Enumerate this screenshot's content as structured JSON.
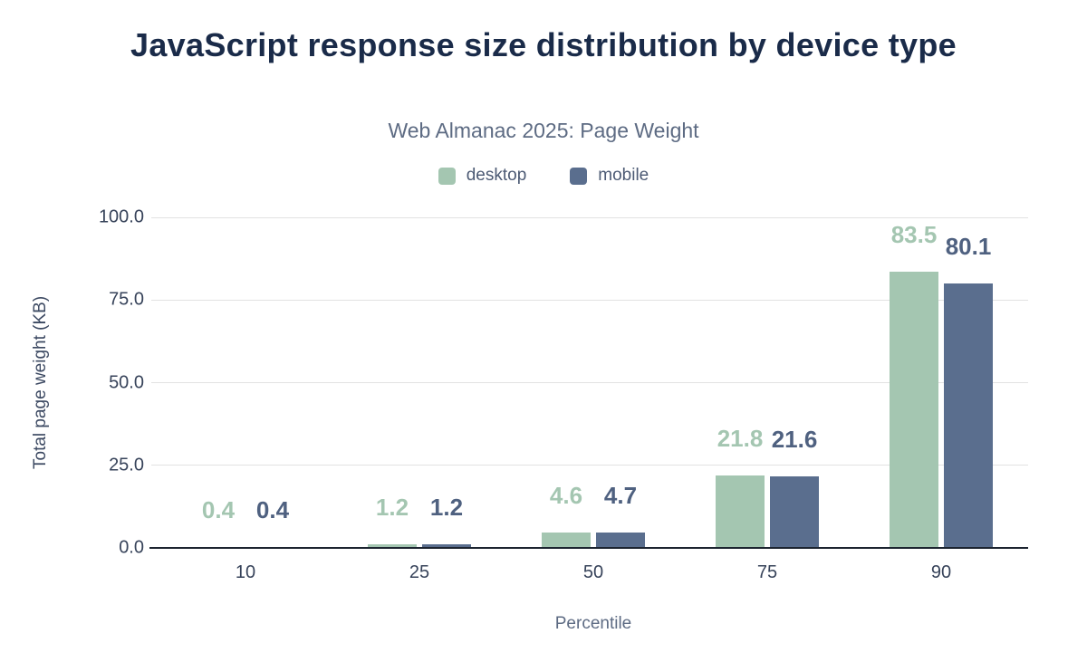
{
  "chart_data": {
    "type": "bar",
    "title": "JavaScript response size distribution by device type",
    "subtitle": "Web Almanac 2025: Page Weight",
    "xlabel": "Percentile",
    "ylabel": "Total page weight (KB)",
    "categories": [
      "10",
      "25",
      "50",
      "75",
      "90"
    ],
    "series": [
      {
        "name": "desktop",
        "color": "#a4c6b1",
        "label_color": "#a4c6b1",
        "values": [
          0.4,
          1.2,
          4.6,
          21.8,
          83.5
        ],
        "value_labels": [
          "0.4",
          "1.2",
          "4.6",
          "21.8",
          "83.5"
        ]
      },
      {
        "name": "mobile",
        "color": "#5a6e8e",
        "label_color": "#4f6180",
        "values": [
          0.4,
          1.2,
          4.7,
          21.6,
          80.1
        ],
        "value_labels": [
          "0.4",
          "1.2",
          "4.7",
          "21.6",
          "80.1"
        ]
      }
    ],
    "ylim": [
      0,
      100
    ],
    "yticks": [
      0,
      25,
      50,
      75,
      100
    ],
    "ytick_labels": [
      "0.0",
      "25.0",
      "50.0",
      "75.0",
      "100.0"
    ],
    "grid": true,
    "legend_position": "top",
    "background": "#ffffff"
  }
}
